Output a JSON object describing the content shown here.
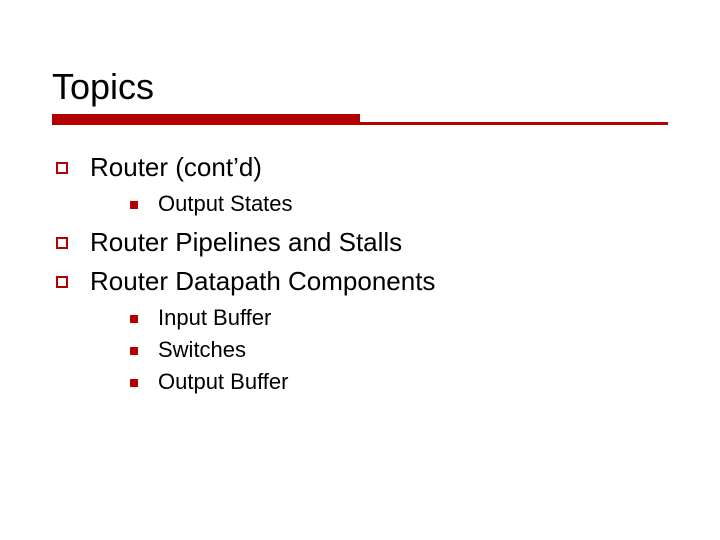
{
  "colors": {
    "accent": "#b30000",
    "text": "#000000",
    "background": "#ffffff"
  },
  "typography": {
    "title_fontsize_pt": 27,
    "lvl1_fontsize_pt": 20,
    "lvl2_fontsize_pt": 17,
    "font_family": "Verdana"
  },
  "title": "Topics",
  "outline": [
    {
      "label": "Router (cont’d)",
      "children": [
        {
          "label": "Output States"
        }
      ]
    },
    {
      "label": "Router Pipelines and Stalls"
    },
    {
      "label": "Router Datapath Components",
      "children": [
        {
          "label": "Input Buffer"
        },
        {
          "label": "Switches"
        },
        {
          "label": "Output Buffer"
        }
      ]
    }
  ]
}
